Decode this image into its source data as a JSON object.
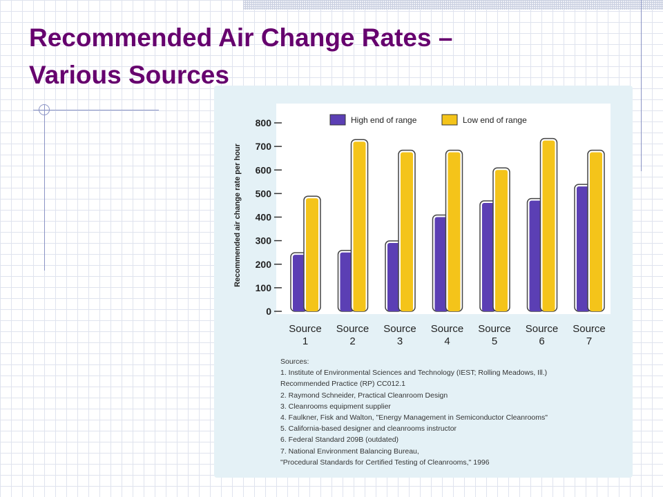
{
  "slide": {
    "title_line1": "Recommended Air Change Rates –",
    "title_line2": "Various Sources"
  },
  "colors": {
    "title": "#66006e",
    "high": "#5b3fb4",
    "low": "#f4c41a"
  },
  "chart_data": {
    "type": "bar",
    "title": "",
    "ylabel": "Recommended air change rate per hour",
    "xlabel": "",
    "ylim": [
      0,
      800
    ],
    "yticks": [
      0,
      100,
      200,
      300,
      400,
      500,
      600,
      700,
      800
    ],
    "categories": [
      [
        "Source",
        "1"
      ],
      [
        "Source",
        "2"
      ],
      [
        "Source",
        "3"
      ],
      [
        "Source",
        "4"
      ],
      [
        "Source",
        "5"
      ],
      [
        "Source",
        "6"
      ],
      [
        "Source",
        "7"
      ]
    ],
    "series": [
      {
        "name": "High end of range",
        "values": [
          240,
          250,
          290,
          400,
          460,
          470,
          530
        ]
      },
      {
        "name": "Low end of range",
        "values": [
          480,
          720,
          675,
          675,
          600,
          725,
          675
        ]
      }
    ],
    "legend_position": "top",
    "grid": false
  },
  "sources_note": {
    "heading": "Sources:",
    "lines": [
      "1. Institute of Environmental Sciences and Technology (IEST; Rolling Meadows, Ill.)",
      "Recommended Practice (RP) CC012.1",
      "2. Raymond Schneider, Practical Cleanroom Design",
      "3. Cleanrooms equipment supplier",
      "4. Faulkner, Fisk and Walton, \"Energy Management in Semiconductor Cleanrooms\"",
      "5. California-based designer and cleanrooms instructor",
      "6. Federal Standard 209B (outdated)",
      "7. National Environment Balancing Bureau,",
      "\"Procedural Standards for Certified Testing of Cleanrooms,\" 1996"
    ]
  }
}
